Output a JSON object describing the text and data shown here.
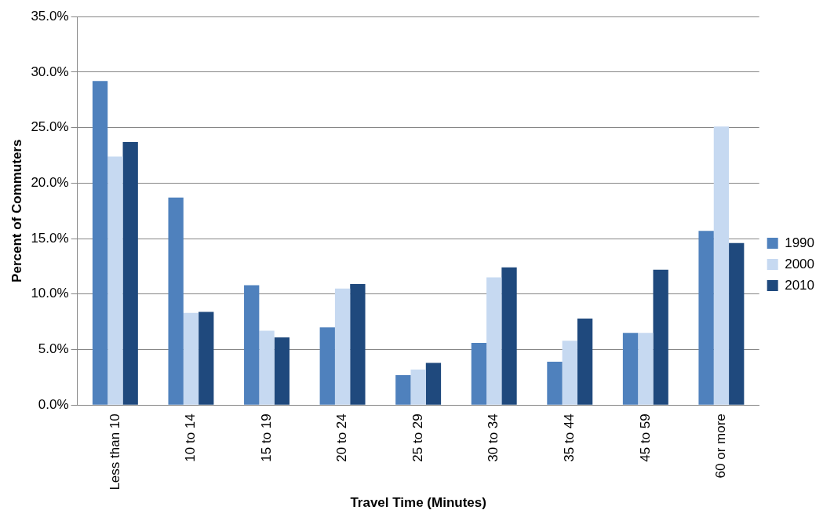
{
  "chart_data": {
    "type": "bar",
    "xlabel": "Travel Time (Minutes)",
    "ylabel": "Percent of Commuters",
    "categories": [
      "Less than 10",
      "10 to 14",
      "15 to 19",
      "20 to 24",
      "25 to 29",
      "30 to 34",
      "35 to 44",
      "45 to 59",
      "60 or more"
    ],
    "series": [
      {
        "name": "1990",
        "color": "#4f81bd",
        "values": [
          29.2,
          18.7,
          10.8,
          7.0,
          2.7,
          5.6,
          3.9,
          6.5,
          15.7
        ]
      },
      {
        "name": "2000",
        "color": "#c6d9f1",
        "values": [
          22.4,
          8.3,
          6.7,
          10.5,
          3.2,
          11.5,
          5.8,
          6.5,
          25.1
        ]
      },
      {
        "name": "2010",
        "color": "#1f497d",
        "values": [
          23.7,
          8.4,
          6.1,
          10.9,
          3.8,
          12.4,
          7.8,
          12.2,
          14.6
        ]
      }
    ],
    "ylim": [
      0,
      35
    ],
    "yticks": [
      {
        "value": 0,
        "label": "0.0%"
      },
      {
        "value": 5,
        "label": "5.0%"
      },
      {
        "value": 10,
        "label": "10.0%"
      },
      {
        "value": 15,
        "label": "15.0%"
      },
      {
        "value": 20,
        "label": "20.0%"
      },
      {
        "value": 25,
        "label": "25.0%"
      },
      {
        "value": 30,
        "label": "30.0%"
      },
      {
        "value": 35,
        "label": "35.0%"
      }
    ],
    "grid": "y",
    "legend": "right"
  }
}
